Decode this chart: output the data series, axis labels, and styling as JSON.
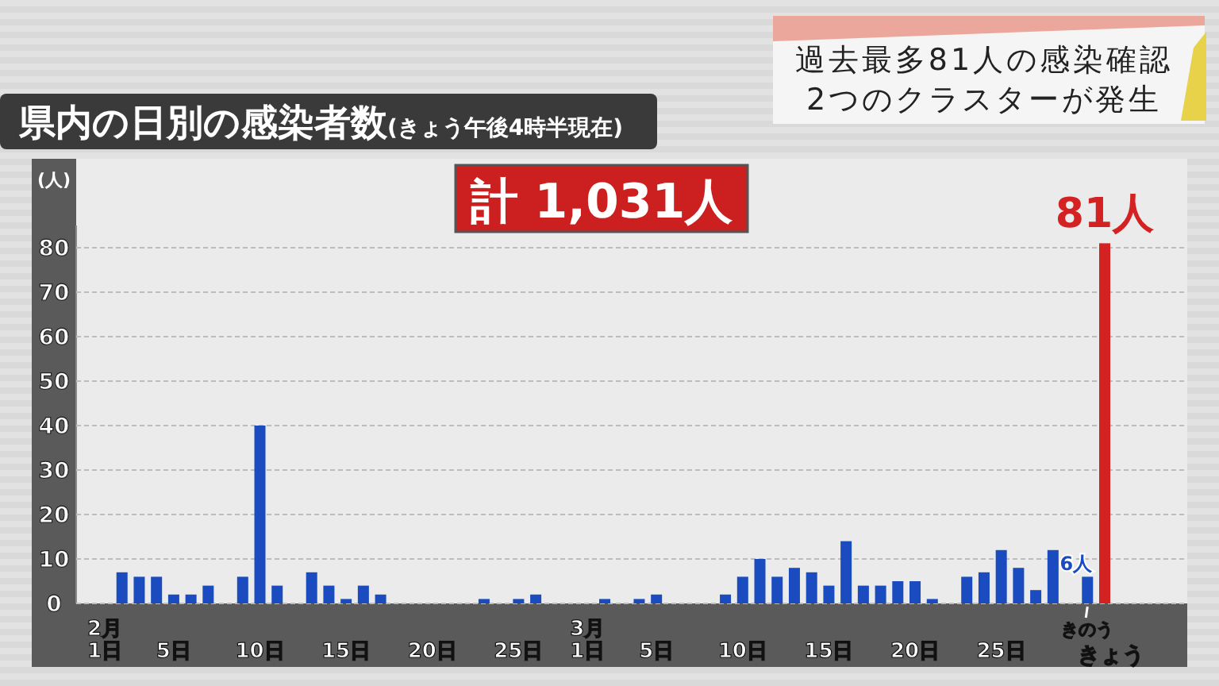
{
  "chart_data": {
    "type": "bar",
    "title": "県内の日別の感染者数",
    "subtitle": "(きょう午後4時半現在)",
    "ylabel": "(人)",
    "annotations": [
      "計 1,031人",
      "過去最多81人の感染確認",
      "2つのクラスターが発生"
    ],
    "categories": [
      "2月\n1日",
      null,
      null,
      null,
      "5日",
      null,
      null,
      null,
      null,
      "10日",
      null,
      null,
      null,
      null,
      "15日",
      null,
      null,
      null,
      null,
      "20日",
      null,
      null,
      null,
      null,
      "25日",
      null,
      null,
      null,
      "3月\n1日",
      null,
      null,
      null,
      "5日",
      null,
      null,
      null,
      null,
      "10日",
      null,
      null,
      null,
      null,
      "15日",
      null,
      null,
      null,
      null,
      "20日",
      null,
      null,
      null,
      null,
      "25日",
      null,
      null,
      null,
      null,
      "きのう",
      "きょう"
    ],
    "values": [
      0,
      7,
      6,
      6,
      2,
      2,
      4,
      0,
      6,
      40,
      4,
      0,
      7,
      4,
      1,
      4,
      2,
      0,
      0,
      0,
      0,
      0,
      1,
      0,
      1,
      2,
      0,
      0,
      0,
      1,
      0,
      1,
      2,
      0,
      0,
      0,
      2,
      6,
      10,
      6,
      8,
      7,
      4,
      14,
      4,
      4,
      5,
      5,
      1,
      0,
      6,
      7,
      12,
      8,
      3,
      12,
      0,
      6,
      81
    ],
    "colors": [
      "#1a4cc0",
      "#1a4cc0",
      "#1a4cc0",
      "#1a4cc0",
      "#1a4cc0",
      "#1a4cc0",
      "#1a4cc0",
      "#1a4cc0",
      "#1a4cc0",
      "#1a4cc0",
      "#1a4cc0",
      "#1a4cc0",
      "#1a4cc0",
      "#1a4cc0",
      "#1a4cc0",
      "#1a4cc0",
      "#1a4cc0",
      "#1a4cc0",
      "#1a4cc0",
      "#1a4cc0",
      "#1a4cc0",
      "#1a4cc0",
      "#1a4cc0",
      "#1a4cc0",
      "#1a4cc0",
      "#1a4cc0",
      "#1a4cc0",
      "#1a4cc0",
      "#1a4cc0",
      "#1a4cc0",
      "#1a4cc0",
      "#1a4cc0",
      "#1a4cc0",
      "#1a4cc0",
      "#1a4cc0",
      "#1a4cc0",
      "#1a4cc0",
      "#1a4cc0",
      "#1a4cc0",
      "#1a4cc0",
      "#1a4cc0",
      "#1a4cc0",
      "#1a4cc0",
      "#1a4cc0",
      "#1a4cc0",
      "#1a4cc0",
      "#1a4cc0",
      "#1a4cc0",
      "#1a4cc0",
      "#1a4cc0",
      "#1a4cc0",
      "#1a4cc0",
      "#1a4cc0",
      "#1a4cc0",
      "#1a4cc0",
      "#1a4cc0",
      "#1a4cc0",
      "#1a4cc0",
      "#d42222"
    ],
    "value_labels": [
      null,
      null,
      null,
      null,
      null,
      null,
      null,
      null,
      null,
      null,
      null,
      null,
      null,
      null,
      null,
      null,
      null,
      null,
      null,
      null,
      null,
      null,
      null,
      null,
      null,
      null,
      null,
      null,
      null,
      null,
      null,
      null,
      null,
      null,
      null,
      null,
      null,
      null,
      null,
      null,
      null,
      null,
      null,
      null,
      null,
      null,
      null,
      null,
      null,
      null,
      null,
      null,
      null,
      null,
      null,
      null,
      null,
      "6人",
      "81人"
    ],
    "ylim": [
      0,
      85
    ],
    "yticks": [
      0,
      10,
      20,
      30,
      40,
      50,
      60,
      70,
      80
    ],
    "grid": "y"
  }
}
